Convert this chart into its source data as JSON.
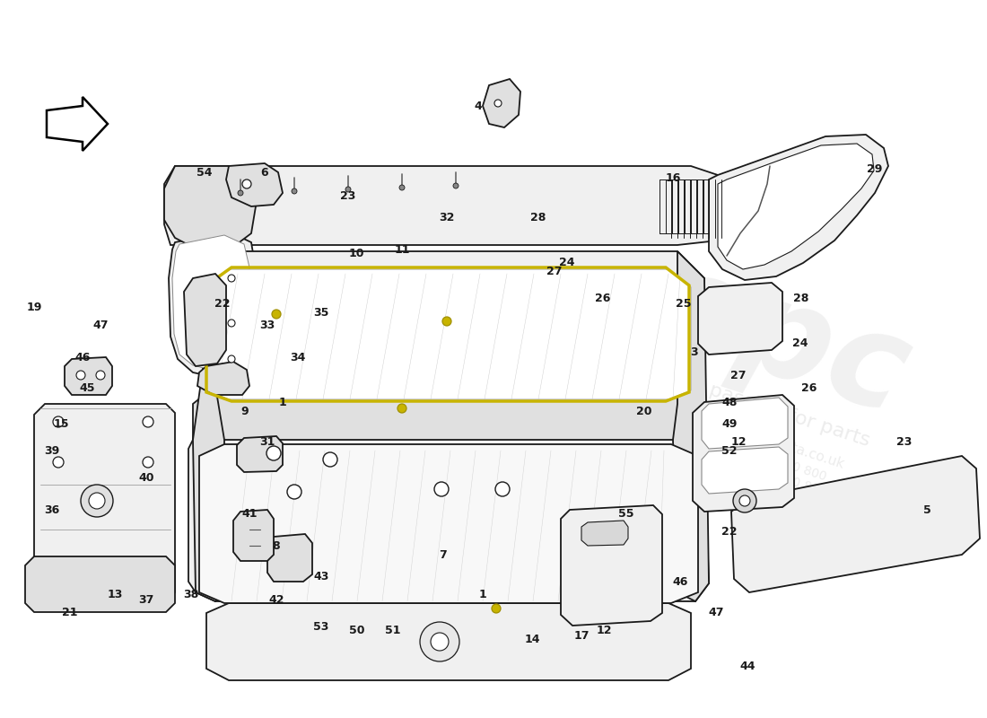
{
  "bg_color": "#ffffff",
  "line_color": "#1a1a1a",
  "seal_color": "#c8b400",
  "fill_light": "#f0f0f0",
  "fill_mid": "#e0e0e0",
  "fill_dark": "#d0d0d0",
  "wm_color": "#cccccc",
  "wm_alpha": 0.28,
  "label_fontsize": 9,
  "label_fontweight": "bold",
  "part_labels": [
    [
      "54",
      228,
      193
    ],
    [
      "6",
      295,
      193
    ],
    [
      "23",
      388,
      218
    ],
    [
      "4",
      533,
      118
    ],
    [
      "16",
      750,
      198
    ],
    [
      "29",
      975,
      188
    ],
    [
      "19",
      38,
      343
    ],
    [
      "47",
      112,
      362
    ],
    [
      "22",
      248,
      338
    ],
    [
      "10",
      397,
      283
    ],
    [
      "11",
      448,
      278
    ],
    [
      "32",
      498,
      243
    ],
    [
      "28",
      600,
      243
    ],
    [
      "24",
      632,
      293
    ],
    [
      "27",
      618,
      303
    ],
    [
      "26",
      672,
      333
    ],
    [
      "25",
      762,
      338
    ],
    [
      "46",
      92,
      398
    ],
    [
      "33",
      298,
      363
    ],
    [
      "35",
      358,
      348
    ],
    [
      "34",
      332,
      398
    ],
    [
      "3",
      773,
      393
    ],
    [
      "28",
      893,
      333
    ],
    [
      "24",
      892,
      383
    ],
    [
      "27",
      823,
      418
    ],
    [
      "26",
      902,
      433
    ],
    [
      "45",
      97,
      433
    ],
    [
      "1",
      315,
      448
    ],
    [
      "20",
      718,
      458
    ],
    [
      "48",
      813,
      448
    ],
    [
      "49",
      813,
      473
    ],
    [
      "15",
      68,
      473
    ],
    [
      "9",
      273,
      458
    ],
    [
      "39",
      58,
      503
    ],
    [
      "52",
      813,
      503
    ],
    [
      "12",
      823,
      493
    ],
    [
      "31",
      298,
      493
    ],
    [
      "40",
      163,
      533
    ],
    [
      "23",
      1008,
      493
    ],
    [
      "41",
      278,
      573
    ],
    [
      "36",
      58,
      568
    ],
    [
      "22",
      813,
      593
    ],
    [
      "8",
      308,
      608
    ],
    [
      "5",
      1033,
      568
    ],
    [
      "55",
      698,
      573
    ],
    [
      "13",
      128,
      663
    ],
    [
      "37",
      163,
      668
    ],
    [
      "38",
      213,
      663
    ],
    [
      "42",
      308,
      668
    ],
    [
      "43",
      358,
      643
    ],
    [
      "7",
      493,
      618
    ],
    [
      "1",
      538,
      663
    ],
    [
      "53",
      358,
      698
    ],
    [
      "50",
      398,
      703
    ],
    [
      "51",
      438,
      703
    ],
    [
      "14",
      593,
      713
    ],
    [
      "17",
      648,
      708
    ],
    [
      "12",
      673,
      703
    ],
    [
      "46",
      758,
      648
    ],
    [
      "47",
      798,
      683
    ],
    [
      "44",
      833,
      743
    ],
    [
      "21",
      78,
      683
    ]
  ]
}
